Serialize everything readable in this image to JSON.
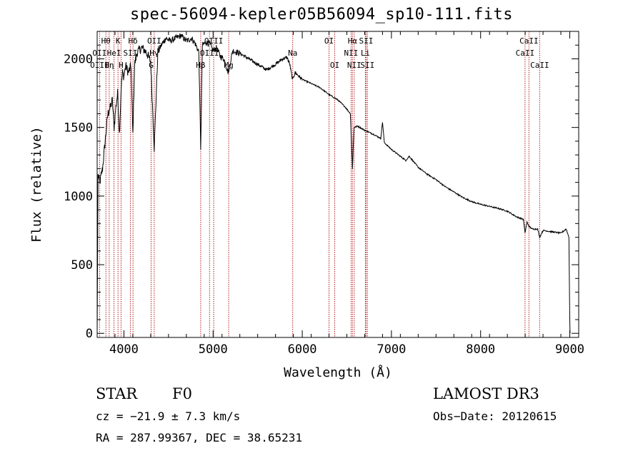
{
  "chart_data": {
    "type": "line",
    "title": "spec-56094-kepler05B56094_sp10-111.fits",
    "xlabel": "Wavelength (Å)",
    "ylabel": "Flux (relative)",
    "xlim": [
      3700,
      9100
    ],
    "ylim": [
      -30,
      2200
    ],
    "x_ticks": [
      4000,
      5000,
      6000,
      7000,
      8000,
      9000
    ],
    "y_ticks": [
      0,
      500,
      1000,
      1500,
      2000
    ],
    "x_tick_labels": [
      "4000",
      "5000",
      "6000",
      "7000",
      "8000",
      "9000"
    ],
    "y_tick_labels": [
      "0",
      "500",
      "1000",
      "1500",
      "2000"
    ],
    "series": [
      {
        "name": "flux",
        "x": [
          3700,
          3710,
          3730,
          3760,
          3790,
          3820,
          3850,
          3870,
          3890,
          3910,
          3930,
          3950,
          3970,
          3985,
          4000,
          4020,
          4050,
          4080,
          4100,
          4120,
          4150,
          4200,
          4250,
          4300,
          4340,
          4380,
          4420,
          4470,
          4520,
          4580,
          4640,
          4700,
          4760,
          4800,
          4840,
          4861,
          4880,
          4920,
          4960,
          5000,
          5040,
          5080,
          5120,
          5170,
          5220,
          5300,
          5400,
          5500,
          5600,
          5700,
          5780,
          5830,
          5860,
          5890,
          5920,
          6000,
          6100,
          6200,
          6300,
          6400,
          6480,
          6540,
          6563,
          6580,
          6620,
          6700,
          6800,
          6880,
          6900,
          6920,
          7000,
          7100,
          7160,
          7200,
          7300,
          7400,
          7500,
          7600,
          7700,
          7800,
          7900,
          8000,
          8100,
          8200,
          8300,
          8400,
          8480,
          8498,
          8520,
          8542,
          8580,
          8640,
          8662,
          8700,
          8800,
          8900,
          8960,
          8990,
          9000,
          9003
        ],
        "values": [
          0,
          1150,
          1100,
          1200,
          1400,
          1600,
          1650,
          1700,
          1500,
          1650,
          1750,
          1450,
          1800,
          1900,
          1870,
          1950,
          1900,
          1950,
          1450,
          1960,
          2050,
          2080,
          2050,
          1980,
          1350,
          2050,
          2100,
          2150,
          2130,
          2150,
          2170,
          2130,
          2150,
          2110,
          2050,
          1350,
          2100,
          2120,
          2110,
          2060,
          2080,
          2020,
          2000,
          1900,
          2060,
          2040,
          2000,
          1960,
          1920,
          1960,
          2000,
          2010,
          1960,
          1850,
          1900,
          1850,
          1820,
          1790,
          1740,
          1700,
          1650,
          1600,
          1200,
          1500,
          1510,
          1480,
          1450,
          1420,
          1540,
          1390,
          1340,
          1290,
          1260,
          1290,
          1210,
          1160,
          1120,
          1070,
          1030,
          990,
          960,
          940,
          925,
          910,
          890,
          850,
          830,
          730,
          810,
          780,
          760,
          760,
          700,
          750,
          740,
          730,
          760,
          700,
          100,
          0
        ]
      }
    ],
    "line_labels": [
      {
        "label": "Hθ",
        "x": 3798,
        "row": 1
      },
      {
        "label": "K",
        "x": 3934,
        "row": 1
      },
      {
        "label": "Hδ",
        "x": 4102,
        "row": 1
      },
      {
        "label": "OII",
        "x": 4340,
        "row": 1
      },
      {
        "label": "OIII",
        "x": 5007,
        "row": 1
      },
      {
        "label": "OI",
        "x": 6300,
        "row": 1
      },
      {
        "label": "Hα",
        "x": 6563,
        "row": 1
      },
      {
        "label": "SII",
        "x": 6716,
        "row": 1
      },
      {
        "label": "CaII",
        "x": 8542,
        "row": 1
      },
      {
        "label": "OII",
        "x": 3727,
        "row": 2
      },
      {
        "label": "HeI",
        "x": 3889,
        "row": 2
      },
      {
        "label": "SII",
        "x": 4072,
        "row": 2
      },
      {
        "label": "Hγ",
        "x": 4340,
        "row": 2
      },
      {
        "label": "OIII",
        "x": 4960,
        "row": 2
      },
      {
        "label": "Na",
        "x": 5893,
        "row": 2
      },
      {
        "label": "NII",
        "x": 6548,
        "row": 2
      },
      {
        "label": "Li",
        "x": 6708,
        "row": 2
      },
      {
        "label": "CaII",
        "x": 8498,
        "row": 2
      },
      {
        "label": "OIII",
        "x": 3727,
        "row": 3
      },
      {
        "label": "Hη",
        "x": 3835,
        "row": 3
      },
      {
        "label": "H",
        "x": 3968,
        "row": 3
      },
      {
        "label": "G",
        "x": 4305,
        "row": 3
      },
      {
        "label": "Hβ",
        "x": 4861,
        "row": 3
      },
      {
        "label": "Mg",
        "x": 5175,
        "row": 3
      },
      {
        "label": "OI",
        "x": 6364,
        "row": 3
      },
      {
        "label": "NII",
        "x": 6583,
        "row": 3
      },
      {
        "label": "SII",
        "x": 6731,
        "row": 3
      },
      {
        "label": "CaII",
        "x": 8662,
        "row": 3
      }
    ],
    "reference_lines": [
      3727,
      3798,
      3835,
      3889,
      3934,
      3968,
      4072,
      4102,
      4305,
      4340,
      4861,
      4960,
      5007,
      5175,
      5893,
      6300,
      6364,
      6548,
      6563,
      6583,
      6708,
      6716,
      6731,
      8498,
      8542,
      8662
    ]
  },
  "info": {
    "object_class": "STAR",
    "subclass": "F0",
    "survey": "LAMOST DR3",
    "cz": "cz = −21.9 ± 7.3 km/s",
    "obs_date": "Obs−Date: 20120615",
    "coords": "RA = 287.99367, DEC =  38.65231"
  },
  "colors": {
    "spectrum": "#000000",
    "reference_line": "#b22222",
    "axis": "#000000",
    "background": "#ffffff"
  }
}
